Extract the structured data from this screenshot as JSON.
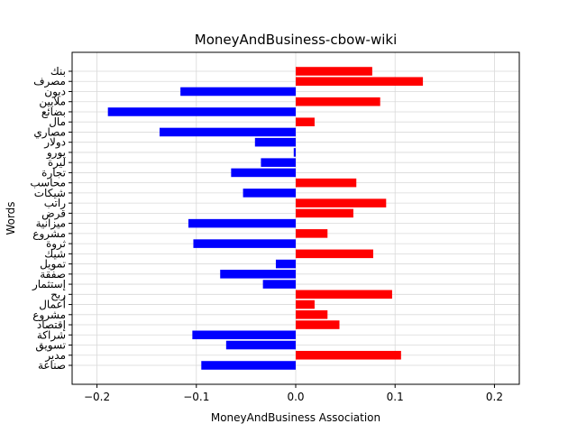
{
  "chart_data": {
    "type": "bar",
    "orientation": "horizontal",
    "title": "MoneyAndBusiness-cbow-wiki",
    "xlabel": "MoneyAndBusiness Association",
    "ylabel": "Words",
    "xlim": [
      -0.225,
      0.225
    ],
    "xticks": [
      -0.2,
      -0.1,
      0.0,
      0.1,
      0.2
    ],
    "xtick_labels": [
      "−0.2",
      "−0.1",
      "0.0",
      "0.1",
      "0.2"
    ],
    "grid": true,
    "positive_color": "#ff0000",
    "negative_color": "#0000ff",
    "categories": [
      "بنك",
      "مصرف",
      "ديون",
      "ملايين",
      "بضائع",
      "مال",
      "مصاري",
      "دولار",
      "يورو",
      "ليرة",
      "تجارة",
      "محاسب",
      "شيكات",
      "راتب",
      "قرض",
      "ميزانية",
      "مشروع",
      "ثروة",
      "شيك",
      "تمويل",
      "صفقة",
      "إستثمار",
      "ربح",
      "أعمال",
      "مشروع",
      "إقتصاد",
      "شراكة",
      "تسويق",
      "مدير",
      "صناعة"
    ],
    "values": [
      0.077,
      0.128,
      -0.116,
      0.085,
      -0.189,
      0.019,
      -0.137,
      -0.041,
      -0.002,
      -0.035,
      -0.065,
      0.061,
      -0.053,
      0.091,
      0.058,
      -0.108,
      0.032,
      -0.103,
      0.078,
      -0.02,
      -0.076,
      -0.033,
      0.097,
      0.019,
      0.032,
      0.044,
      -0.104,
      -0.07,
      0.106,
      -0.095
    ]
  }
}
